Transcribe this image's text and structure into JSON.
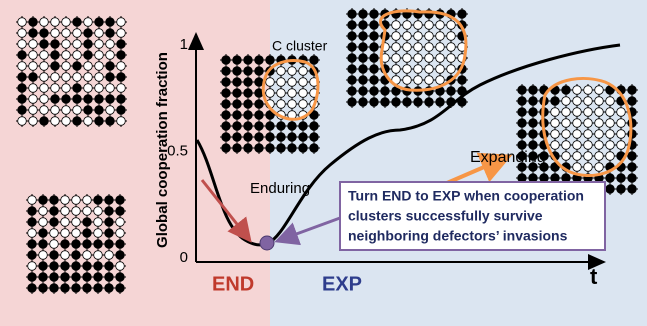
{
  "axis": {
    "y_label": "Global cooperation fraction",
    "yticks": [
      1,
      0.5,
      0
    ],
    "x_label": "t"
  },
  "phases": {
    "end": "END",
    "exp": "EXP"
  },
  "labels": {
    "cluster": "C cluster",
    "enduring": "Enduring",
    "expanding": "Expanding"
  },
  "callout": {
    "lines": [
      "Turn END to EXP when cooperation",
      "clusters successfully survive",
      "neighboring defectors’ invasions"
    ]
  }
}
